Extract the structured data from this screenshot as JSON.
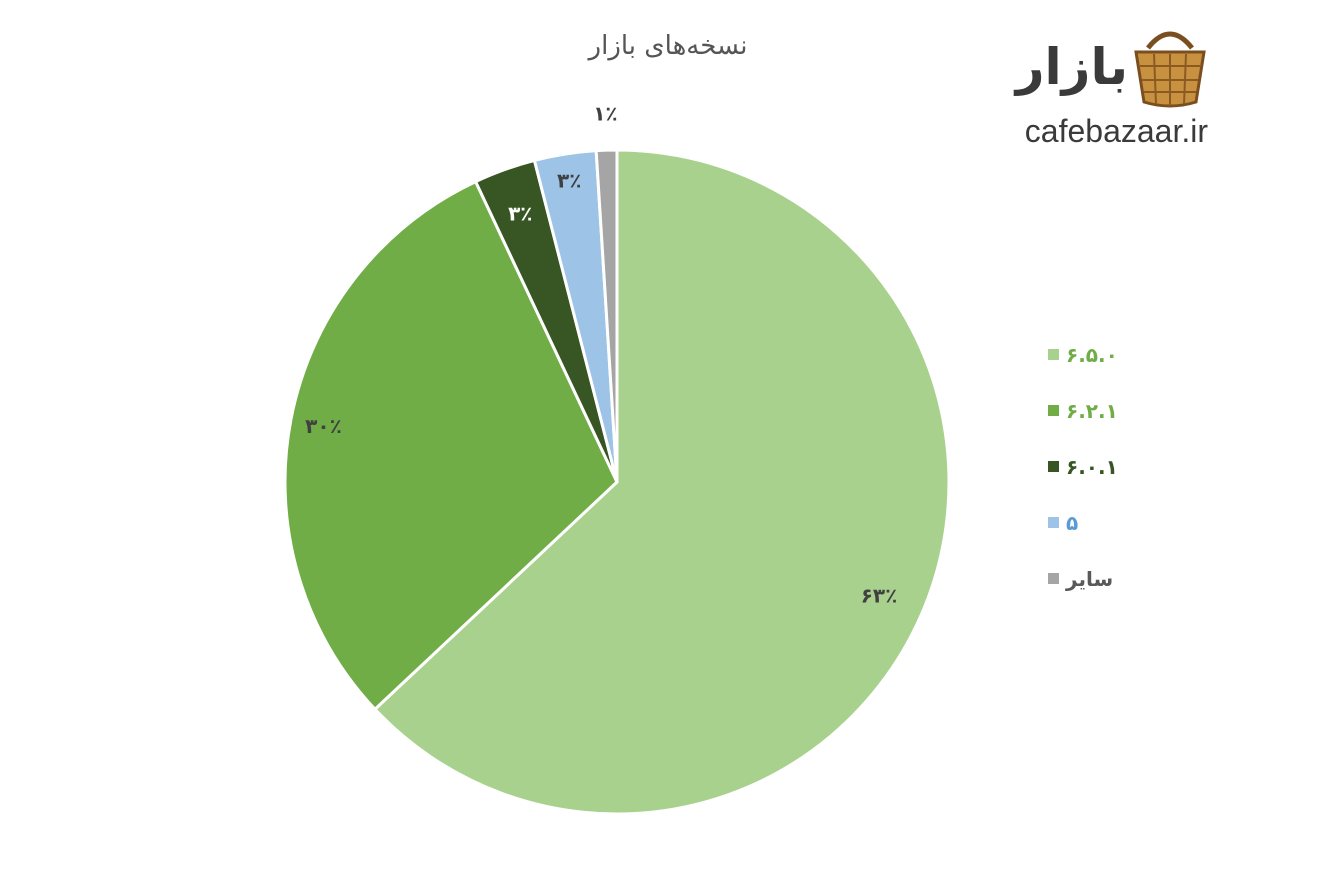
{
  "brand": {
    "logo_text": "بازار",
    "site": "cafebazaar.ir",
    "basket_icon": "basket-icon"
  },
  "chart_data": {
    "type": "pie",
    "title": "نسخه‌های بازار",
    "legend_position": "right",
    "slices": [
      {
        "label": "۶.۵.۰",
        "value": 63,
        "display": "۶۳٪",
        "color": "#a9d18e",
        "label_color": "#404040",
        "legend_text_color": "#70ad47"
      },
      {
        "label": "۶.۲.۱",
        "value": 30,
        "display": "۳۰٪",
        "color": "#70ad47",
        "label_color": "#404040",
        "legend_text_color": "#70ad47"
      },
      {
        "label": "۶.۰.۱",
        "value": 3,
        "display": "۳٪",
        "color": "#375623",
        "label_color": "#ffffff",
        "legend_text_color": "#375623"
      },
      {
        "label": "۵",
        "value": 3,
        "display": "۳٪",
        "color": "#9dc3e6",
        "label_color": "#404040",
        "legend_text_color": "#5b9bd5"
      },
      {
        "label": "سایر",
        "value": 1,
        "display": "۱٪",
        "color": "#a5a5a5",
        "label_color": "#404040",
        "legend_text_color": "#595959"
      }
    ]
  }
}
